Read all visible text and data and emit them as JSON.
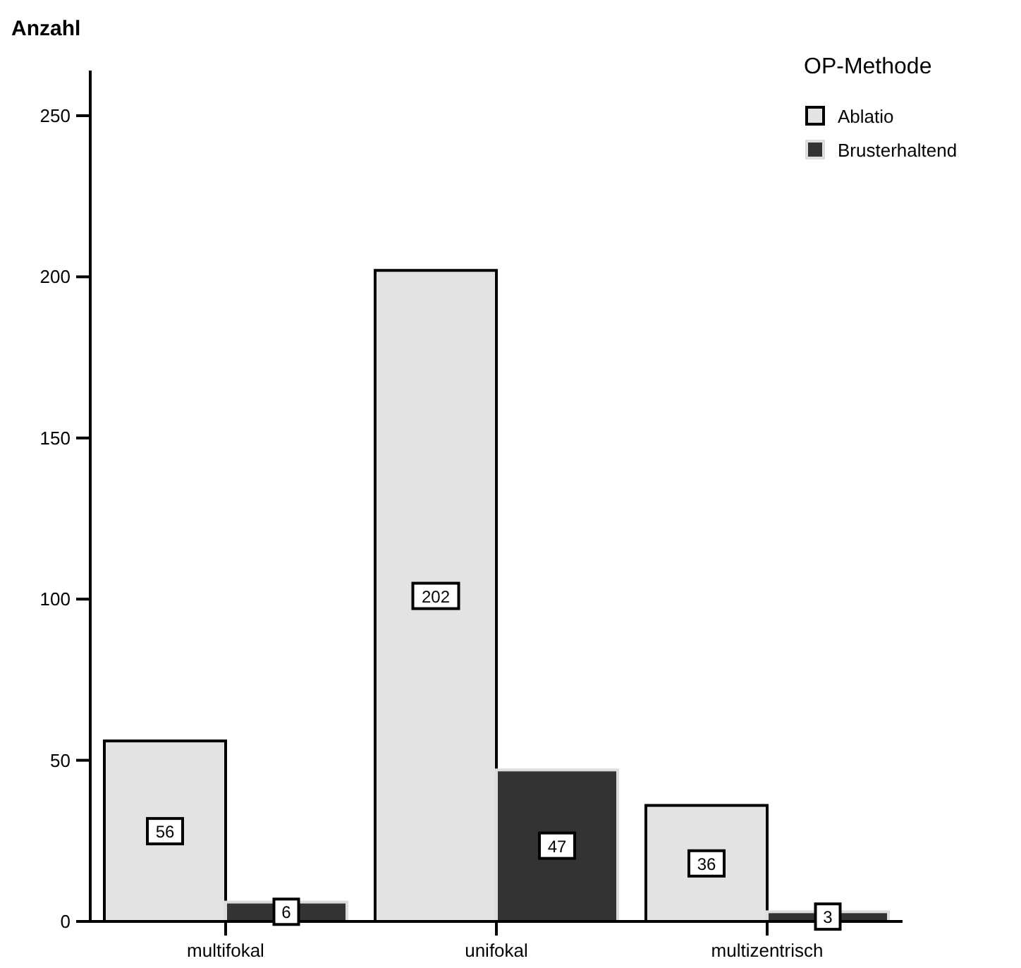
{
  "chart_data": {
    "type": "bar",
    "ylabel": "Anzahl",
    "legend_title": "OP-Methode",
    "categories": [
      "multifokal",
      "unifokal",
      "multizentrisch"
    ],
    "series": [
      {
        "name": "Ablatio",
        "color": "#e3e3e3",
        "values": [
          56,
          202,
          36
        ]
      },
      {
        "name": "Brusterhaltend",
        "color": "#333333",
        "values": [
          6,
          47,
          3
        ]
      }
    ],
    "ylim": [
      0,
      264
    ],
    "yticks": [
      0,
      50,
      100,
      150,
      200,
      250
    ],
    "data_labels": true,
    "legend": "top right",
    "grid": false
  }
}
